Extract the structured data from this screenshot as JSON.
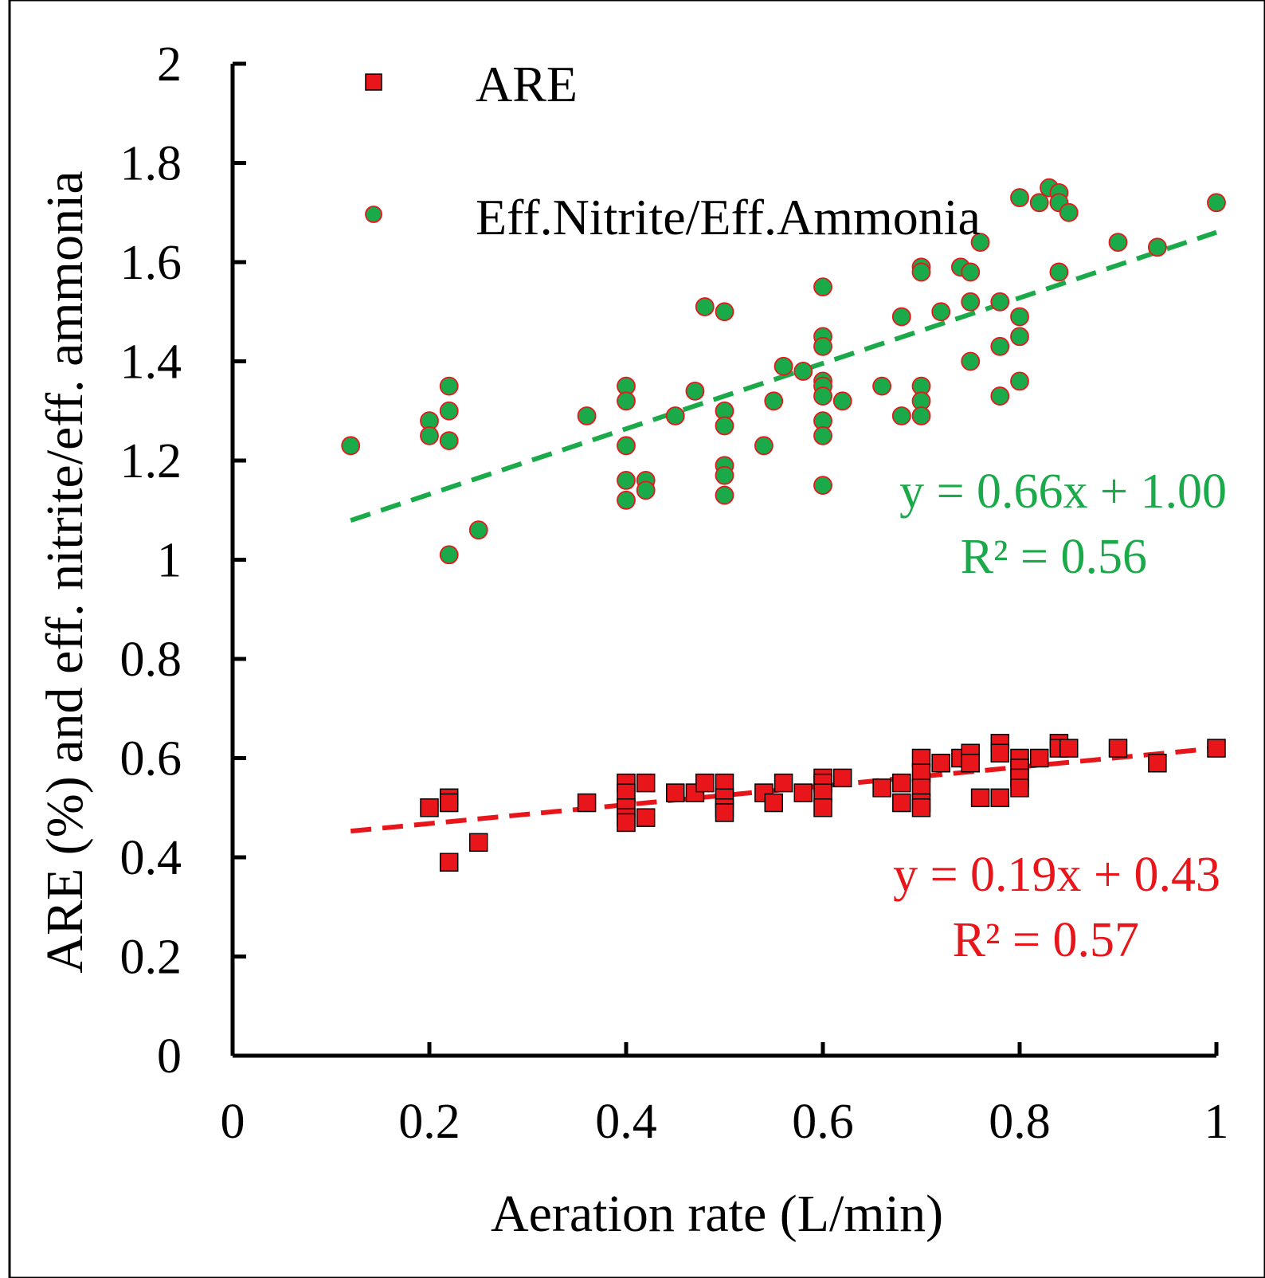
{
  "chart_data": {
    "type": "scatter",
    "title": "",
    "xlabel": "Aeration rate (L/min)",
    "ylabel": "ARE (%) and eff. nitrite/eff. ammonia",
    "xlim": [
      0,
      1
    ],
    "ylim": [
      0,
      2
    ],
    "x_ticks": [
      "0",
      "0.2",
      "0.4",
      "0.6",
      "0.8",
      "1"
    ],
    "y_ticks": [
      "0",
      "0.2",
      "0.4",
      "0.6",
      "0.8",
      "1",
      "1.2",
      "1.4",
      "1.6",
      "1.8",
      "2"
    ],
    "grid": false,
    "legend_position": "top",
    "colors": {
      "are": "#e8161b",
      "are_edge": "#000000",
      "ratio": "#1aaa4a",
      "ratio_edge": "#e8161b",
      "trend_are": "#e8161b",
      "trend_ratio": "#1aaa4a"
    },
    "series": [
      {
        "name": "ARE",
        "marker": "square",
        "points": [
          [
            0.2,
            0.5
          ],
          [
            0.22,
            0.52
          ],
          [
            0.22,
            0.51
          ],
          [
            0.22,
            0.39
          ],
          [
            0.25,
            0.43
          ],
          [
            0.36,
            0.51
          ],
          [
            0.4,
            0.55
          ],
          [
            0.4,
            0.53
          ],
          [
            0.4,
            0.5
          ],
          [
            0.4,
            0.48
          ],
          [
            0.4,
            0.47
          ],
          [
            0.42,
            0.55
          ],
          [
            0.42,
            0.48
          ],
          [
            0.45,
            0.53
          ],
          [
            0.47,
            0.53
          ],
          [
            0.48,
            0.55
          ],
          [
            0.5,
            0.55
          ],
          [
            0.5,
            0.52
          ],
          [
            0.5,
            0.5
          ],
          [
            0.5,
            0.49
          ],
          [
            0.54,
            0.53
          ],
          [
            0.55,
            0.51
          ],
          [
            0.56,
            0.55
          ],
          [
            0.58,
            0.53
          ],
          [
            0.6,
            0.56
          ],
          [
            0.6,
            0.55
          ],
          [
            0.6,
            0.53
          ],
          [
            0.6,
            0.5
          ],
          [
            0.62,
            0.56
          ],
          [
            0.66,
            0.54
          ],
          [
            0.68,
            0.55
          ],
          [
            0.68,
            0.51
          ],
          [
            0.7,
            0.6
          ],
          [
            0.7,
            0.57
          ],
          [
            0.7,
            0.54
          ],
          [
            0.7,
            0.51
          ],
          [
            0.7,
            0.5
          ],
          [
            0.72,
            0.59
          ],
          [
            0.74,
            0.6
          ],
          [
            0.75,
            0.61
          ],
          [
            0.75,
            0.59
          ],
          [
            0.76,
            0.52
          ],
          [
            0.78,
            0.63
          ],
          [
            0.78,
            0.61
          ],
          [
            0.78,
            0.52
          ],
          [
            0.8,
            0.6
          ],
          [
            0.8,
            0.58
          ],
          [
            0.8,
            0.56
          ],
          [
            0.8,
            0.54
          ],
          [
            0.82,
            0.6
          ],
          [
            0.84,
            0.63
          ],
          [
            0.84,
            0.62
          ],
          [
            0.85,
            0.62
          ],
          [
            0.9,
            0.62
          ],
          [
            0.94,
            0.59
          ],
          [
            1.0,
            0.62
          ]
        ]
      },
      {
        "name": "Eff.Nitrite/Eff.Ammonia",
        "marker": "circle",
        "points": [
          [
            0.12,
            1.23
          ],
          [
            0.2,
            1.28
          ],
          [
            0.2,
            1.25
          ],
          [
            0.22,
            1.35
          ],
          [
            0.22,
            1.3
          ],
          [
            0.22,
            1.24
          ],
          [
            0.22,
            1.01
          ],
          [
            0.25,
            1.06
          ],
          [
            0.36,
            1.29
          ],
          [
            0.4,
            1.35
          ],
          [
            0.4,
            1.32
          ],
          [
            0.4,
            1.23
          ],
          [
            0.4,
            1.16
          ],
          [
            0.4,
            1.12
          ],
          [
            0.42,
            1.16
          ],
          [
            0.42,
            1.14
          ],
          [
            0.45,
            1.29
          ],
          [
            0.47,
            1.34
          ],
          [
            0.48,
            1.51
          ],
          [
            0.5,
            1.5
          ],
          [
            0.5,
            1.3
          ],
          [
            0.5,
            1.27
          ],
          [
            0.5,
            1.19
          ],
          [
            0.5,
            1.17
          ],
          [
            0.5,
            1.13
          ],
          [
            0.54,
            1.23
          ],
          [
            0.55,
            1.32
          ],
          [
            0.56,
            1.39
          ],
          [
            0.58,
            1.38
          ],
          [
            0.6,
            1.55
          ],
          [
            0.6,
            1.45
          ],
          [
            0.6,
            1.43
          ],
          [
            0.6,
            1.36
          ],
          [
            0.6,
            1.35
          ],
          [
            0.6,
            1.33
          ],
          [
            0.6,
            1.28
          ],
          [
            0.6,
            1.25
          ],
          [
            0.6,
            1.15
          ],
          [
            0.62,
            1.32
          ],
          [
            0.66,
            1.35
          ],
          [
            0.68,
            1.49
          ],
          [
            0.68,
            1.29
          ],
          [
            0.7,
            1.59
          ],
          [
            0.7,
            1.58
          ],
          [
            0.7,
            1.35
          ],
          [
            0.7,
            1.32
          ],
          [
            0.7,
            1.29
          ],
          [
            0.72,
            1.5
          ],
          [
            0.74,
            1.59
          ],
          [
            0.75,
            1.58
          ],
          [
            0.75,
            1.52
          ],
          [
            0.75,
            1.4
          ],
          [
            0.76,
            1.64
          ],
          [
            0.78,
            1.52
          ],
          [
            0.78,
            1.43
          ],
          [
            0.78,
            1.33
          ],
          [
            0.8,
            1.73
          ],
          [
            0.8,
            1.49
          ],
          [
            0.8,
            1.45
          ],
          [
            0.8,
            1.36
          ],
          [
            0.82,
            1.72
          ],
          [
            0.83,
            1.75
          ],
          [
            0.84,
            1.74
          ],
          [
            0.84,
            1.72
          ],
          [
            0.84,
            1.58
          ],
          [
            0.85,
            1.7
          ],
          [
            0.9,
            1.64
          ],
          [
            0.94,
            1.63
          ],
          [
            1.0,
            1.72
          ]
        ]
      }
    ],
    "trendlines": [
      {
        "series": "ARE",
        "slope": 0.19,
        "intercept": 0.43,
        "x_range": [
          0.12,
          1.0
        ],
        "equation": "y = 0.19x + 0.43",
        "r2": "R² = 0.57"
      },
      {
        "series": "Eff.Nitrite/Eff.Ammonia",
        "slope": 0.66,
        "intercept": 1.0,
        "x_range": [
          0.12,
          1.0
        ],
        "equation": "y = 0.66x + 1.00",
        "r2": "R² = 0.56"
      }
    ],
    "legend": [
      {
        "label": "ARE",
        "marker": "square"
      },
      {
        "label": "Eff.Nitrite/Eff.Ammonia",
        "marker": "circle"
      }
    ]
  }
}
